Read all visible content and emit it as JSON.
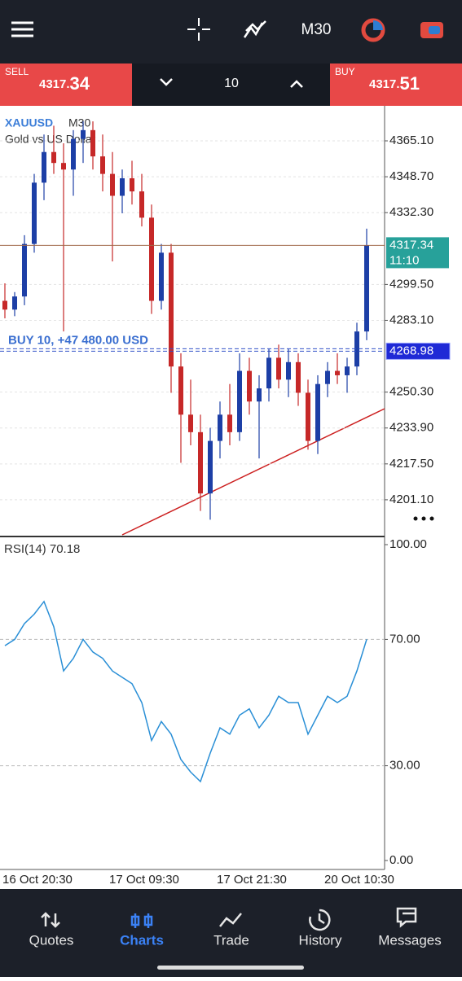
{
  "top_bar": {
    "timeframe": "M30"
  },
  "trade_bar": {
    "sell": {
      "label": "SELL",
      "price_head": "4317.",
      "price_tail": "34"
    },
    "volume": "10",
    "buy": {
      "label": "BUY",
      "price_head": "4317.",
      "price_tail": "51"
    }
  },
  "chart": {
    "type": "candlestick",
    "symbol": "XAUUSD",
    "timeframe": "M30",
    "description": "Gold vs US Dollar",
    "position_label": "BUY 10,  +47 480.00 USD",
    "position_price": 4268.98,
    "current_price": 4317.34,
    "countdown": "11:10",
    "ylim": [
      4184.7,
      4381.1
    ],
    "yticks": [
      {
        "value": 4365.1,
        "label": "4365.10"
      },
      {
        "value": 4348.7,
        "label": "4348.70"
      },
      {
        "value": 4332.3,
        "label": "4332.30"
      },
      {
        "value": 4299.5,
        "label": "4299.50"
      },
      {
        "value": 4283.1,
        "label": "4283.10"
      },
      {
        "value": 4250.3,
        "label": "4250.30"
      },
      {
        "value": 4233.9,
        "label": "4233.90"
      },
      {
        "value": 4217.5,
        "label": "4217.50"
      },
      {
        "value": 4201.1,
        "label": "4201.10"
      }
    ],
    "up_color": "#1d3fa6",
    "down_color": "#c62828",
    "open": [
      4292,
      4288,
      4294,
      4318,
      4346,
      4360,
      4355,
      4352,
      4366,
      4370,
      4358,
      4350,
      4340,
      4348,
      4342,
      4330,
      4292,
      4314,
      4262,
      4240,
      4232,
      4204,
      4228,
      4240,
      4232,
      4260,
      4246,
      4252,
      4266,
      4256,
      4264,
      4250,
      4228,
      4254,
      4260,
      4258,
      4262,
      4278
    ],
    "high": [
      4300,
      4296,
      4322,
      4350,
      4368,
      4372,
      4364,
      4370,
      4374,
      4374,
      4368,
      4360,
      4352,
      4356,
      4350,
      4336,
      4318,
      4318,
      4268,
      4256,
      4240,
      4234,
      4246,
      4254,
      4268,
      4266,
      4258,
      4270,
      4272,
      4270,
      4268,
      4256,
      4258,
      4264,
      4268,
      4266,
      4282,
      4325
    ],
    "low": [
      4284,
      4285,
      4290,
      4314,
      4338,
      4350,
      4278,
      4340,
      4355,
      4352,
      4342,
      4310,
      4332,
      4336,
      4326,
      4286,
      4288,
      4250,
      4218,
      4226,
      4196,
      4192,
      4220,
      4226,
      4228,
      4240,
      4220,
      4246,
      4252,
      4248,
      4244,
      4224,
      4222,
      4248,
      4254,
      4250,
      4258,
      4274
    ],
    "close": [
      4288,
      4294,
      4318,
      4346,
      4360,
      4355,
      4352,
      4366,
      4370,
      4358,
      4350,
      4340,
      4348,
      4342,
      4330,
      4292,
      4314,
      4262,
      4240,
      4232,
      4204,
      4228,
      4240,
      4232,
      4260,
      4246,
      4252,
      4266,
      4256,
      4264,
      4250,
      4228,
      4254,
      4260,
      4258,
      4262,
      4278,
      4317.34
    ],
    "x_labels": [
      "16 Oct 20:30",
      "17 Oct 09:30",
      "17 Oct 21:30",
      "20 Oct 10:30"
    ],
    "rsi": {
      "title": "RSI(14) 70.18",
      "color": "#2a8fd6",
      "ylim": [
        0,
        100
      ],
      "yticks": [
        {
          "value": 100,
          "label": "100.00"
        },
        {
          "value": 70,
          "label": "70.00"
        },
        {
          "value": 30,
          "label": "30.00"
        },
        {
          "value": 0,
          "label": "0.00"
        }
      ],
      "values": [
        68,
        70,
        75,
        78,
        82,
        74,
        60,
        64,
        70,
        66,
        64,
        60,
        58,
        56,
        50,
        38,
        44,
        40,
        32,
        28,
        25,
        34,
        42,
        40,
        46,
        48,
        42,
        46,
        52,
        50,
        50,
        40,
        46,
        52,
        50,
        52,
        60,
        70
      ]
    }
  },
  "nav": {
    "items": [
      "Quotes",
      "Charts",
      "Trade",
      "History",
      "Messages"
    ],
    "active": "Charts"
  }
}
